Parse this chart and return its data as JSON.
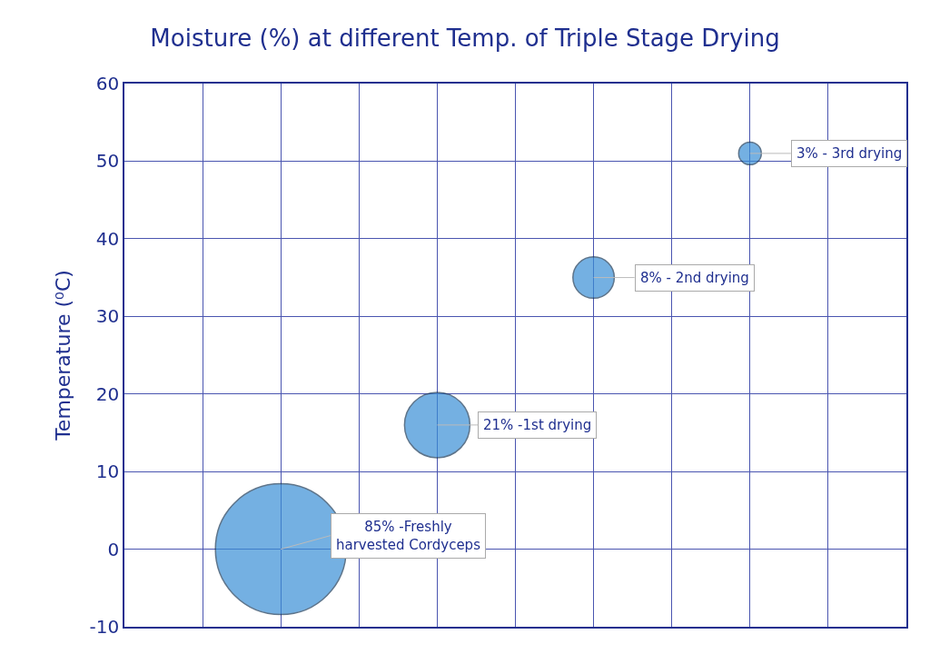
{
  "chart_data": {
    "type": "bubble",
    "title": "Moisture (%) at different Temp. of Triple Stage Drying",
    "ylabel": "Temperature (⁰C)",
    "categories": [
      null,
      null,
      null,
      null
    ],
    "values": [
      0,
      16,
      35,
      51
    ],
    "sizes": [
      1,
      0.25,
      0.1,
      0.03
    ],
    "color": "#3a8fd6",
    "ylim": [
      -10,
      60
    ],
    "yticks": [
      -10,
      0,
      10,
      20,
      30,
      40,
      50,
      60
    ],
    "grid": true,
    "tick_labels": "y",
    "annotations": [
      "85% -Freshly\nharvested Cordyceps",
      "21% -1st drying",
      "8% - 2nd drying",
      "3% - 3rd drying"
    ]
  }
}
